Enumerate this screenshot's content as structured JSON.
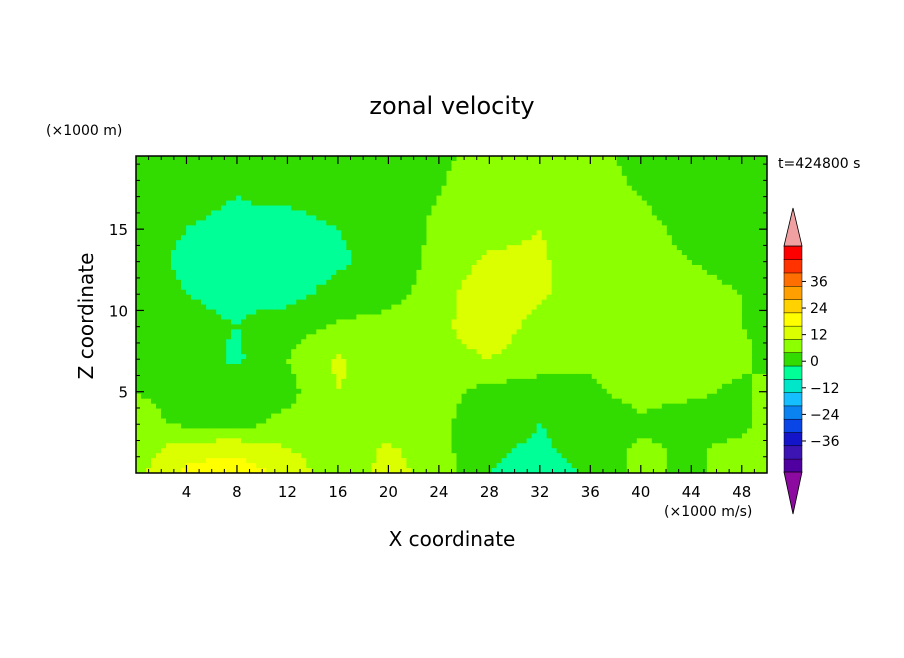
{
  "chart_data": {
    "type": "heatmap",
    "title": "zonal velocity",
    "xlabel": "X coordinate",
    "ylabel": "Z coordinate",
    "x_unit": "(×1000 m/s)",
    "y_unit": "(×1000 m)",
    "time_label": "t=424800 s",
    "xlim": [
      0,
      50
    ],
    "ylim": [
      0,
      19.5
    ],
    "x_ticks": [
      4,
      8,
      12,
      16,
      20,
      24,
      28,
      32,
      36,
      40,
      44,
      48
    ],
    "y_ticks": [
      5,
      10,
      15
    ],
    "colorbar": {
      "levels": [
        -42,
        -36,
        -30,
        -24,
        -18,
        -12,
        -6,
        0,
        6,
        12,
        18,
        24,
        30,
        36,
        42
      ],
      "tick_labels": [
        "36",
        "24",
        "12",
        "0",
        "−12",
        "−24",
        "−36"
      ],
      "tick_values": [
        36,
        24,
        12,
        0,
        -12,
        -24,
        -36
      ],
      "colors": [
        "#5000a0",
        "#3c14b4",
        "#1414c8",
        "#0a46e6",
        "#0a82f0",
        "#14beff",
        "#00e6c8",
        "#00ff96",
        "#32dc00",
        "#8cff00",
        "#dcff00",
        "#ffff00",
        "#ffd200",
        "#ffa000",
        "#ff6e00",
        "#ff3200",
        "#ff0000"
      ],
      "under_color": "#8c0aa0",
      "over_color": "#f0a0a0"
    },
    "x": [
      0,
      4,
      8,
      12,
      16,
      20,
      24,
      28,
      32,
      36,
      40,
      44,
      48,
      50
    ],
    "z": [
      0,
      1.5,
      3,
      5,
      7,
      9,
      11,
      13,
      15,
      17,
      19.5
    ],
    "values": [
      [
        4,
        14,
        16,
        10,
        2,
        8,
        4,
        -6,
        -9,
        -5,
        2,
        -2,
        4,
        2
      ],
      [
        3,
        9,
        10,
        6,
        2,
        7,
        2,
        -5,
        -7,
        -3,
        1,
        -1,
        2,
        1
      ],
      [
        2,
        -1,
        -2,
        2,
        4,
        2,
        1,
        -3,
        -6,
        -4,
        -1,
        -3,
        -2,
        4
      ],
      [
        0,
        -2,
        -3,
        -2,
        6,
        3,
        2,
        -2,
        -3,
        -1,
        2,
        1,
        -1,
        1
      ],
      [
        -1,
        -3,
        -7,
        0,
        7,
        2,
        4,
        6,
        3,
        1,
        3,
        2,
        1,
        -1
      ],
      [
        -2,
        -5,
        -6,
        -3,
        1,
        2,
        5,
        9,
        4,
        3,
        2,
        1,
        0,
        -1
      ],
      [
        -3,
        -6,
        -7,
        -8,
        -4,
        -2,
        3,
        11,
        7,
        2,
        1,
        1,
        0,
        -2
      ],
      [
        -4,
        -7,
        -8,
        -9,
        -7,
        -4,
        2,
        7,
        7,
        2,
        1,
        0,
        -1,
        -3
      ],
      [
        -4,
        -6,
        -7,
        -8,
        -6,
        -3,
        1,
        4,
        6,
        2,
        1,
        -1,
        -2,
        -4
      ],
      [
        -5,
        -5,
        -6,
        -5,
        -4,
        -2,
        0,
        3,
        4,
        1,
        0,
        -2,
        -3,
        -4
      ],
      [
        -5,
        -5,
        -4,
        -4,
        -3,
        -2,
        -1,
        2,
        3,
        1,
        -1,
        -3,
        -4,
        -5
      ]
    ]
  }
}
